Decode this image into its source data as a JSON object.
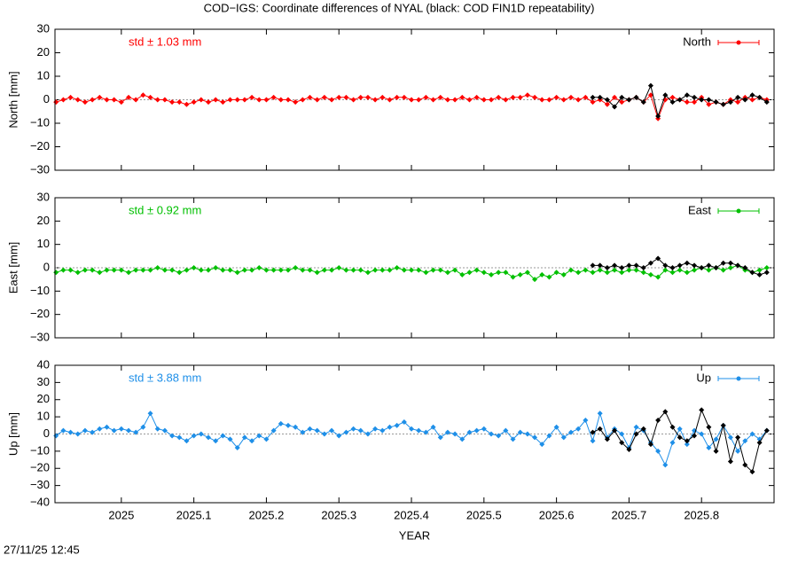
{
  "chart_data": [
    {
      "type": "line",
      "title": "COD−IGS: Coordinate differences of NYAL (black: COD FIN1D repeatability)",
      "ylabel": "North [mm]",
      "annotation": "std ± 1.03 mm",
      "zero_line": true,
      "xlim": [
        2024.9085,
        2025.9
      ],
      "ylim": [
        -30,
        30
      ],
      "yticks": [
        {
          "value": -30,
          "label": "−30"
        },
        {
          "value": -20,
          "label": "−20"
        },
        {
          "value": -10,
          "label": "−10"
        },
        0,
        10,
        20,
        30
      ],
      "x": [
        2024.91,
        2024.92,
        2024.93,
        2024.94,
        2024.95,
        2024.96,
        2024.97,
        2024.98,
        2024.99,
        2025,
        2025.01,
        2025.02,
        2025.03,
        2025.04,
        2025.05,
        2025.06,
        2025.07,
        2025.08,
        2025.09,
        2025.1,
        2025.11,
        2025.12,
        2025.13,
        2025.14,
        2025.15,
        2025.16,
        2025.17,
        2025.18,
        2025.19,
        2025.2,
        2025.21,
        2025.22,
        2025.23,
        2025.24,
        2025.25,
        2025.26,
        2025.27,
        2025.28,
        2025.29,
        2025.3,
        2025.31,
        2025.32,
        2025.33,
        2025.34,
        2025.35,
        2025.36,
        2025.37,
        2025.38,
        2025.39,
        2025.4,
        2025.41,
        2025.42,
        2025.43,
        2025.44,
        2025.45,
        2025.46,
        2025.47,
        2025.48,
        2025.49,
        2025.5,
        2025.51,
        2025.52,
        2025.53,
        2025.54,
        2025.55,
        2025.56,
        2025.57,
        2025.58,
        2025.59,
        2025.6,
        2025.61,
        2025.62,
        2025.63,
        2025.64,
        2025.65,
        2025.66,
        2025.67,
        2025.68,
        2025.69,
        2025.7,
        2025.71,
        2025.72,
        2025.73,
        2025.74,
        2025.75,
        2025.76,
        2025.77,
        2025.78,
        2025.79,
        2025.8,
        2025.81,
        2025.82,
        2025.83,
        2025.84,
        2025.85,
        2025.86,
        2025.87,
        2025.88,
        2025.89
      ],
      "series": [
        {
          "name": "North",
          "color": "#ff0000",
          "values": [
            -1,
            0,
            1,
            0,
            -1,
            0,
            1,
            0,
            0,
            -1,
            1,
            0,
            2,
            1,
            0,
            0,
            -1,
            -1,
            -2,
            -1,
            0,
            -1,
            0,
            -1,
            0,
            0,
            0,
            1,
            0,
            0,
            1,
            0,
            0,
            -1,
            0,
            1,
            0,
            1,
            0,
            1,
            1,
            0,
            1,
            1,
            0,
            1,
            0,
            1,
            1,
            0,
            0,
            1,
            0,
            1,
            0,
            0,
            1,
            0,
            1,
            0,
            0,
            1,
            0,
            1,
            1,
            2,
            1,
            0,
            0,
            1,
            0,
            1,
            0,
            1,
            -1,
            0,
            -2,
            1,
            -1,
            0,
            1,
            -1,
            2,
            -8,
            0,
            1,
            0,
            -1,
            -1,
            1,
            -2,
            -1,
            -2,
            0,
            -1,
            1,
            0,
            1,
            0
          ]
        },
        {
          "color": "#000000",
          "values": [
            null,
            null,
            null,
            null,
            null,
            null,
            null,
            null,
            null,
            null,
            null,
            null,
            null,
            null,
            null,
            null,
            null,
            null,
            null,
            null,
            null,
            null,
            null,
            null,
            null,
            null,
            null,
            null,
            null,
            null,
            null,
            null,
            null,
            null,
            null,
            null,
            null,
            null,
            null,
            null,
            null,
            null,
            null,
            null,
            null,
            null,
            null,
            null,
            null,
            null,
            null,
            null,
            null,
            null,
            null,
            null,
            null,
            null,
            null,
            null,
            null,
            null,
            null,
            null,
            null,
            null,
            null,
            null,
            null,
            null,
            null,
            null,
            null,
            null,
            1,
            1,
            0,
            -3,
            1,
            0,
            1,
            -1,
            6,
            -7,
            2,
            -1,
            0,
            2,
            1,
            0,
            0,
            -1,
            -2,
            -1,
            1,
            0,
            2,
            1,
            -1
          ]
        }
      ]
    },
    {
      "type": "line",
      "ylabel": "East [mm]",
      "annotation": "std ± 0.92 mm",
      "zero_line": true,
      "xlim": [
        2024.9085,
        2025.9
      ],
      "ylim": [
        -30,
        30
      ],
      "yticks": [
        {
          "value": -30,
          "label": "−30"
        },
        {
          "value": -20,
          "label": "−20"
        },
        {
          "value": -10,
          "label": "−10"
        },
        0,
        10,
        20,
        30
      ],
      "x": [
        2024.91,
        2024.92,
        2024.93,
        2024.94,
        2024.95,
        2024.96,
        2024.97,
        2024.98,
        2024.99,
        2025,
        2025.01,
        2025.02,
        2025.03,
        2025.04,
        2025.05,
        2025.06,
        2025.07,
        2025.08,
        2025.09,
        2025.1,
        2025.11,
        2025.12,
        2025.13,
        2025.14,
        2025.15,
        2025.16,
        2025.17,
        2025.18,
        2025.19,
        2025.2,
        2025.21,
        2025.22,
        2025.23,
        2025.24,
        2025.25,
        2025.26,
        2025.27,
        2025.28,
        2025.29,
        2025.3,
        2025.31,
        2025.32,
        2025.33,
        2025.34,
        2025.35,
        2025.36,
        2025.37,
        2025.38,
        2025.39,
        2025.4,
        2025.41,
        2025.42,
        2025.43,
        2025.44,
        2025.45,
        2025.46,
        2025.47,
        2025.48,
        2025.49,
        2025.5,
        2025.51,
        2025.52,
        2025.53,
        2025.54,
        2025.55,
        2025.56,
        2025.57,
        2025.58,
        2025.59,
        2025.6,
        2025.61,
        2025.62,
        2025.63,
        2025.64,
        2025.65,
        2025.66,
        2025.67,
        2025.68,
        2025.69,
        2025.7,
        2025.71,
        2025.72,
        2025.73,
        2025.74,
        2025.75,
        2025.76,
        2025.77,
        2025.78,
        2025.79,
        2025.8,
        2025.81,
        2025.82,
        2025.83,
        2025.84,
        2025.85,
        2025.86,
        2025.87,
        2025.88,
        2025.89
      ],
      "series": [
        {
          "name": "East",
          "color": "#00c000",
          "values": [
            -2,
            -1,
            -1,
            -2,
            -1,
            -1,
            -2,
            -1,
            -1,
            -1,
            -2,
            -1,
            -1,
            -1,
            0,
            -1,
            -1,
            -2,
            -1,
            0,
            -1,
            -1,
            0,
            -1,
            -1,
            -2,
            -1,
            -1,
            0,
            -1,
            -1,
            -1,
            -1,
            0,
            -1,
            -1,
            -2,
            -1,
            -1,
            0,
            -1,
            -1,
            -1,
            -2,
            -1,
            -1,
            -1,
            0,
            -1,
            -1,
            -1,
            -2,
            -1,
            -1,
            -2,
            -1,
            -3,
            -2,
            -1,
            -2,
            -3,
            -2,
            -2,
            -4,
            -3,
            -2,
            -5,
            -3,
            -4,
            -2,
            -3,
            -1,
            -2,
            -1,
            -2,
            -1,
            -2,
            -1,
            -2,
            -1,
            -1,
            -2,
            -3,
            -4,
            -1,
            -2,
            -1,
            -2,
            -1,
            0,
            -1,
            0,
            -1,
            0,
            1,
            -1,
            -2,
            -1,
            0
          ]
        },
        {
          "color": "#000000",
          "values": [
            null,
            null,
            null,
            null,
            null,
            null,
            null,
            null,
            null,
            null,
            null,
            null,
            null,
            null,
            null,
            null,
            null,
            null,
            null,
            null,
            null,
            null,
            null,
            null,
            null,
            null,
            null,
            null,
            null,
            null,
            null,
            null,
            null,
            null,
            null,
            null,
            null,
            null,
            null,
            null,
            null,
            null,
            null,
            null,
            null,
            null,
            null,
            null,
            null,
            null,
            null,
            null,
            null,
            null,
            null,
            null,
            null,
            null,
            null,
            null,
            null,
            null,
            null,
            null,
            null,
            null,
            null,
            null,
            null,
            null,
            null,
            null,
            null,
            null,
            1,
            1,
            0,
            1,
            0,
            1,
            1,
            0,
            2,
            4,
            1,
            0,
            1,
            2,
            1,
            0,
            1,
            0,
            2,
            2,
            1,
            0,
            -2,
            -3,
            -2
          ]
        }
      ]
    },
    {
      "type": "line",
      "ylabel": "Up [mm]",
      "annotation": "std ± 3.88 mm",
      "zero_line": true,
      "xlabel": "YEAR",
      "xlim": [
        2024.9085,
        2025.9
      ],
      "ylim": [
        -40,
        40
      ],
      "xticks": [
        2025,
        2025.1,
        2025.2,
        2025.3,
        2025.4,
        2025.5,
        2025.6,
        2025.7,
        2025.8
      ],
      "yticks": [
        {
          "value": -40,
          "label": "−40"
        },
        {
          "value": -30,
          "label": "−30"
        },
        {
          "value": -20,
          "label": "−20"
        },
        {
          "value": -10,
          "label": "−10"
        },
        0,
        10,
        20,
        30,
        40
      ],
      "x": [
        2024.91,
        2024.92,
        2024.93,
        2024.94,
        2024.95,
        2024.96,
        2024.97,
        2024.98,
        2024.99,
        2025,
        2025.01,
        2025.02,
        2025.03,
        2025.04,
        2025.05,
        2025.06,
        2025.07,
        2025.08,
        2025.09,
        2025.1,
        2025.11,
        2025.12,
        2025.13,
        2025.14,
        2025.15,
        2025.16,
        2025.17,
        2025.18,
        2025.19,
        2025.2,
        2025.21,
        2025.22,
        2025.23,
        2025.24,
        2025.25,
        2025.26,
        2025.27,
        2025.28,
        2025.29,
        2025.3,
        2025.31,
        2025.32,
        2025.33,
        2025.34,
        2025.35,
        2025.36,
        2025.37,
        2025.38,
        2025.39,
        2025.4,
        2025.41,
        2025.42,
        2025.43,
        2025.44,
        2025.45,
        2025.46,
        2025.47,
        2025.48,
        2025.49,
        2025.5,
        2025.51,
        2025.52,
        2025.53,
        2025.54,
        2025.55,
        2025.56,
        2025.57,
        2025.58,
        2025.59,
        2025.6,
        2025.61,
        2025.62,
        2025.63,
        2025.64,
        2025.65,
        2025.66,
        2025.67,
        2025.68,
        2025.69,
        2025.7,
        2025.71,
        2025.72,
        2025.73,
        2025.74,
        2025.75,
        2025.76,
        2025.77,
        2025.78,
        2025.79,
        2025.8,
        2025.81,
        2025.82,
        2025.83,
        2025.84,
        2025.85,
        2025.86,
        2025.87,
        2025.88,
        2025.89
      ],
      "series": [
        {
          "name": "Up",
          "color": "#1e8fe8",
          "values": [
            -1,
            2,
            1,
            0,
            2,
            1,
            3,
            4,
            2,
            3,
            2,
            1,
            4,
            12,
            3,
            2,
            -1,
            -2,
            -4,
            -1,
            0,
            -2,
            -4,
            -1,
            -3,
            -8,
            -2,
            -4,
            -1,
            -3,
            2,
            6,
            5,
            4,
            1,
            3,
            2,
            0,
            2,
            -1,
            1,
            3,
            2,
            0,
            3,
            2,
            4,
            5,
            7,
            3,
            2,
            1,
            4,
            -2,
            1,
            0,
            -3,
            1,
            2,
            3,
            0,
            -1,
            2,
            -3,
            1,
            0,
            -2,
            -6,
            -1,
            4,
            -2,
            1,
            3,
            8,
            -4,
            12,
            -2,
            3,
            0,
            -8,
            4,
            2,
            -5,
            -10,
            -18,
            -5,
            3,
            -6,
            2,
            0,
            -8,
            -3,
            5,
            -2,
            -10,
            -4,
            0,
            -3,
            2
          ]
        },
        {
          "color": "#000000",
          "values": [
            null,
            null,
            null,
            null,
            null,
            null,
            null,
            null,
            null,
            null,
            null,
            null,
            null,
            null,
            null,
            null,
            null,
            null,
            null,
            null,
            null,
            null,
            null,
            null,
            null,
            null,
            null,
            null,
            null,
            null,
            null,
            null,
            null,
            null,
            null,
            null,
            null,
            null,
            null,
            null,
            null,
            null,
            null,
            null,
            null,
            null,
            null,
            null,
            null,
            null,
            null,
            null,
            null,
            null,
            null,
            null,
            null,
            null,
            null,
            null,
            null,
            null,
            null,
            null,
            null,
            null,
            null,
            null,
            null,
            null,
            null,
            null,
            null,
            null,
            1,
            3,
            -3,
            2,
            -5,
            -9,
            0,
            3,
            -6,
            8,
            13,
            4,
            -2,
            -4,
            -1,
            14,
            4,
            -10,
            5,
            -16,
            -2,
            -18,
            -22,
            -5,
            2
          ]
        }
      ]
    }
  ],
  "timestamp": "27/11/25 12:45"
}
